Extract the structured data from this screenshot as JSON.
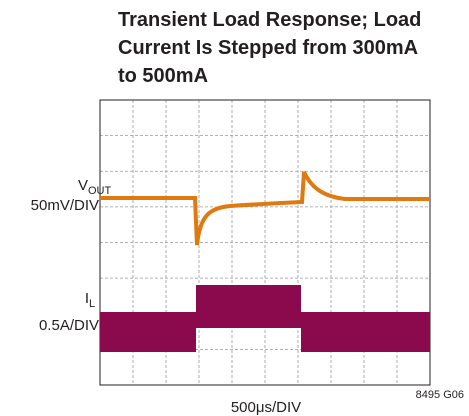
{
  "chart_data": {
    "type": "scope",
    "title": [
      "Transient Load Response; Load",
      "Current Is Stepped from 300mA",
      "to 500mA"
    ],
    "traces": [
      {
        "name": "V",
        "subscript": "OUT",
        "scale": "50mV/DIV",
        "color": "#e07a10"
      },
      {
        "name": "I",
        "subscript": "L",
        "scale": "0.5A/DIV",
        "color": "#8b0a4e"
      }
    ],
    "x_label": "500μs/DIV",
    "note": "8495 G06"
  }
}
